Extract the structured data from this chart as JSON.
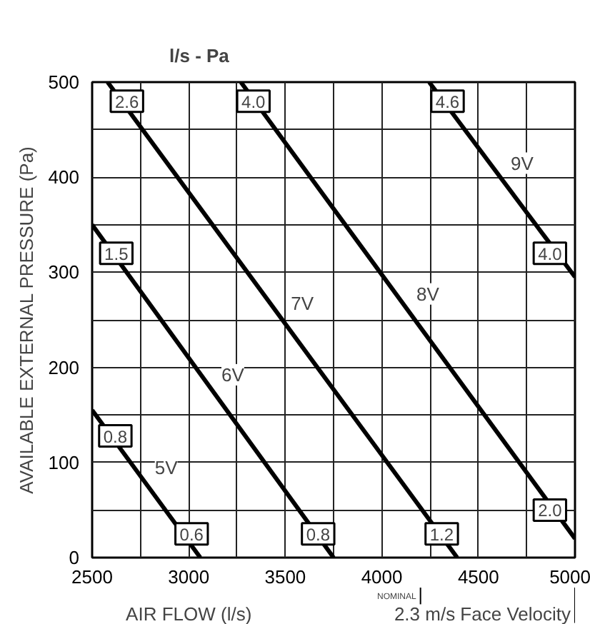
{
  "chart_data": {
    "type": "line",
    "title": "l/s - Pa",
    "xlabel": "AIR FLOW (l/s)",
    "ylabel": "AVAILABLE EXTERNAL PRESSURE (Pa)",
    "series": [
      {
        "name": "5V",
        "color": "#000000",
        "x": [
          2500,
          3060
        ],
        "values": [
          155,
          0
        ]
      },
      {
        "name": "6V",
        "color": "#000000",
        "x": [
          2500,
          3750
        ],
        "values": [
          350,
          0
        ]
      },
      {
        "name": "7V",
        "color": "#000000",
        "x": [
          2580,
          4390
        ],
        "values": [
          500,
          0
        ]
      },
      {
        "name": "8V",
        "color": "#000000",
        "x": [
          3270,
          5000
        ],
        "values": [
          500,
          20
        ]
      },
      {
        "name": "9V",
        "color": "#000000",
        "x": [
          4245,
          5000
        ],
        "values": [
          500,
          295
        ]
      }
    ],
    "xlim": [
      2500,
      5000
    ],
    "ylim": [
      0,
      500
    ],
    "xticks": [
      2500,
      {
        "value": 2750,
        "label": null
      },
      3000,
      {
        "value": 3250,
        "label": null
      },
      3500,
      {
        "value": 3750,
        "label": null
      },
      4000,
      {
        "value": 4250,
        "label": null
      },
      4500,
      {
        "value": 4750,
        "label": null
      },
      5000
    ],
    "yticks": [
      0,
      {
        "value": 50,
        "label": null
      },
      100,
      {
        "value": 150,
        "label": null
      },
      200,
      {
        "value": 250,
        "label": null
      },
      300,
      {
        "value": 350,
        "label": null
      },
      400,
      {
        "value": 450,
        "label": null
      },
      500
    ],
    "grid": true,
    "marker": "none",
    "line_style": "solid",
    "annotations": [
      {
        "text": "2.6",
        "x": 2680,
        "y": 480
      },
      {
        "text": "4.0",
        "x": 3335,
        "y": 480
      },
      {
        "text": "4.6",
        "x": 4340,
        "y": 480
      },
      {
        "text": "1.5",
        "x": 2625,
        "y": 320
      },
      {
        "text": "4.0",
        "x": 4870,
        "y": 320
      },
      {
        "text": "0.8",
        "x": 2620,
        "y": 128
      },
      {
        "text": "0.6",
        "x": 3015,
        "y": 25
      },
      {
        "text": "0.8",
        "x": 3670,
        "y": 25
      },
      {
        "text": "1.2",
        "x": 4310,
        "y": 25
      },
      {
        "text": "2.0",
        "x": 4870,
        "y": 50
      },
      "NOMINAL",
      "2.3 m/s Face Velocity"
    ]
  }
}
